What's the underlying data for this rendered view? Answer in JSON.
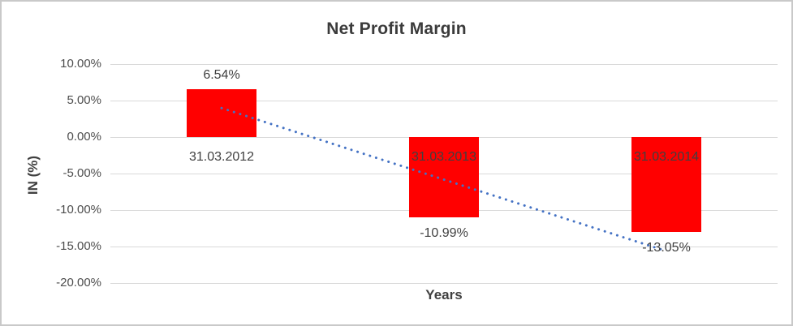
{
  "chart_data": {
    "type": "bar",
    "title": "Net Profit Margin",
    "xlabel": "Years",
    "ylabel": "IN (%)",
    "categories": [
      "31.03.2012",
      "31.03.2013",
      "31.03.2014"
    ],
    "series": [
      {
        "name": "Net Profit Margin",
        "values": [
          6.54,
          -10.99,
          -13.05
        ]
      }
    ],
    "data_labels": [
      "6.54%",
      "-10.99%",
      "-13.05%"
    ],
    "yticks": [
      {
        "value": 10,
        "label": "10.00%"
      },
      {
        "value": 5,
        "label": "5.00%"
      },
      {
        "value": 0,
        "label": "0.00%"
      },
      {
        "value": -5,
        "label": "-5.00%"
      },
      {
        "value": -10,
        "label": "-10.00%"
      },
      {
        "value": -15,
        "label": "-15.00%"
      },
      {
        "value": -20,
        "label": "-20.00%"
      }
    ],
    "ylim": [
      -20,
      10
    ],
    "grid": true,
    "legend": "none",
    "colors": {
      "bar": "#ff0000",
      "trendline": "#4472c4",
      "gridline": "#d9d9d9",
      "tick_text": "#4d4d4d",
      "label_text": "#404040",
      "title_text": "#3b3b3b"
    },
    "trendline": {
      "type": "linear",
      "style": "dotted",
      "color": "#4472c4",
      "start_value": 3.97,
      "end_value": -15.63
    }
  }
}
